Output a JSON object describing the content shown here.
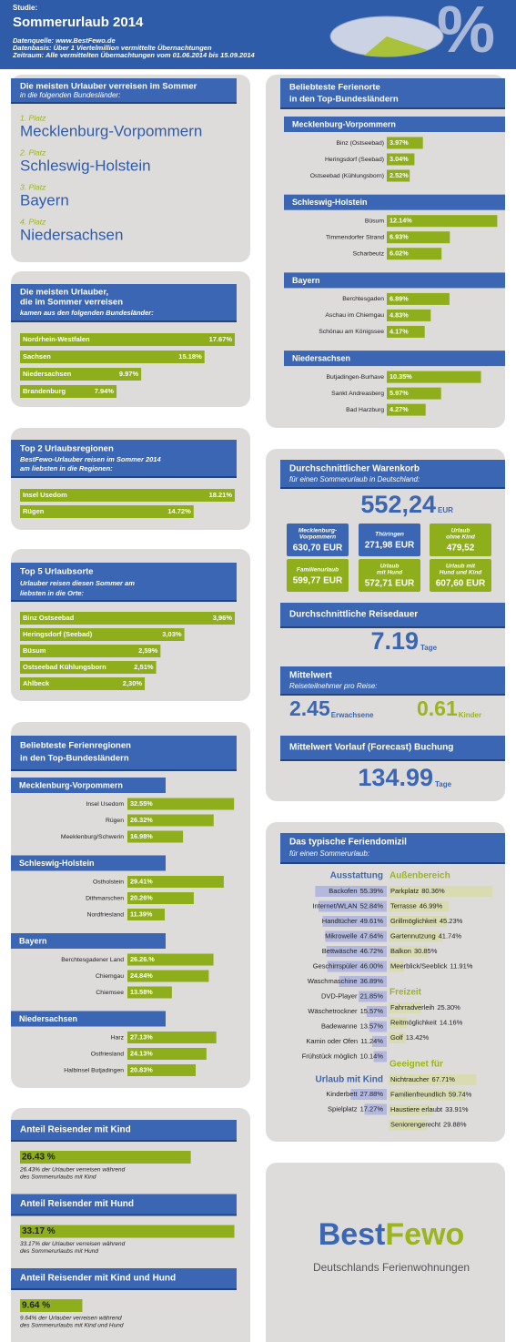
{
  "header": {
    "label": "Studie:",
    "title": "Sommerurlaub 2014",
    "source": "Datenquelle: www.BestFewo.de",
    "basis": "Datenbasis: Über 1 Viertelmillion vermittelte Übernachtungen",
    "period": "Zeitraum: Alle vermittelten Übernachtungen vom 01.06.2014 bis 15.09.2014",
    "icon": "%"
  },
  "destinations": {
    "title": "Die meisten Urlauber verreisen im Sommer",
    "subtitle": "in die folgenden Bundesländer:",
    "items": [
      {
        "rank": "1. Platz",
        "name": "Mecklenburg-Vorpommern"
      },
      {
        "rank": "2. Platz",
        "name": "Schleswig-Holstein"
      },
      {
        "rank": "3. Platz",
        "name": "Bayern"
      },
      {
        "rank": "4. Platz",
        "name": "Niedersachsen"
      }
    ]
  },
  "origin": {
    "title": [
      "Die meisten Urlauber,",
      "die im Sommer verreisen"
    ],
    "subtitle": "kamen aus den folgenden Bundesländer:",
    "labels": [
      "Nordrhein-Westfalen",
      "Sachsen",
      "Niedersachsen",
      "Brandenburg"
    ],
    "values": [
      17.67,
      15.18,
      9.97,
      7.94
    ],
    "value_labels": [
      "17.67%",
      "15.18%",
      "9.97%",
      "7.94%"
    ]
  },
  "top_regions": {
    "title": "Top 2 Urlaubsregionen",
    "subtitle": [
      "BestFewo-Urlauber reisen im Sommer 2014",
      "am liebsten in die Regionen:"
    ],
    "labels": [
      "Insel Usedom",
      "Rügen"
    ],
    "values": [
      18.21,
      14.72
    ],
    "value_labels": [
      "18.21%",
      "14.72%"
    ]
  },
  "top_places": {
    "title": "Top 5 Urlaubsorte",
    "subtitle": [
      "Urlauber reisen diesen Sommer am",
      "liebsten in die Orte:"
    ],
    "labels": [
      "Binz Ostseebad",
      "Heringsdorf (Seebad)",
      "Büsum",
      "Ostseebad Kühlungsborn",
      "Ahlbeck"
    ],
    "values": [
      3.96,
      3.03,
      2.59,
      2.51,
      2.3
    ],
    "value_labels": [
      "3,96%",
      "3,03%",
      "2,59%",
      "2,51%",
      "2,30%"
    ]
  },
  "regions_by_state": {
    "title": [
      "Beliebteste Ferienregionen",
      "in den Top-Bundesländern"
    ],
    "groups": [
      {
        "name": "Mecklenburg-Vorpommern",
        "labels": [
          "Insel Usedom",
          "Rügen",
          "Meeklenburg/Schwerin"
        ],
        "values": [
          32.55,
          26.32,
          16.98
        ],
        "value_labels": [
          "32.55%",
          "26.32%",
          "16.98%"
        ]
      },
      {
        "name": "Schleswig-Holstein",
        "labels": [
          "Ostholstein",
          "Dithmarschen",
          "Nordfriesland"
        ],
        "values": [
          29.41,
          20.26,
          11.39
        ],
        "value_labels": [
          "29.41%",
          "20.26%",
          "11.39%"
        ]
      },
      {
        "name": "Bayern",
        "labels": [
          "Berchtesgadener Land",
          "Chiemgau",
          "Chiemsee"
        ],
        "values": [
          26.26,
          24.84,
          13.58
        ],
        "value_labels": [
          "26.26.%",
          "24.84%",
          "13.58%"
        ]
      },
      {
        "name": "Niedersachsen",
        "labels": [
          "Harz",
          "Ostfriesland",
          "Halbinsel Butjadingen"
        ],
        "values": [
          27.13,
          24.13,
          20.83
        ],
        "value_labels": [
          "27.13%",
          "24.13%",
          "20.83%"
        ]
      }
    ]
  },
  "shares": [
    {
      "title": "Anteil Reisender mit Kind",
      "value": 26.43,
      "value_label": "26.43 %",
      "note": [
        "26.43% der Urlauber verreisen während",
        "des Sommerurlaubs mit Kind"
      ]
    },
    {
      "title": "Anteil Reisender mit Hund",
      "value": 33.17,
      "value_label": "33.17 %",
      "note": [
        "33.17% der Urlauber verreisen während",
        "des Sommerurlaubs mit Hund"
      ]
    },
    {
      "title": "Anteil Reisender mit Kind und Hund",
      "value": 9.64,
      "value_label": "9.64 %",
      "note": [
        "9.64% der Urlauber verreisen während",
        "des Sommerurlaubs mit Kind und Hund"
      ]
    }
  ],
  "places_by_state": {
    "title": [
      "Beliebteste Ferienorte",
      "in den Top-Bundesländern"
    ],
    "groups": [
      {
        "name": "Mecklenburg-Vorpommern",
        "labels": [
          "Binz (Ostseebad)",
          "Heringsdorf (Seebad)",
          "Ostseebad (Kühlungsborn)"
        ],
        "values": [
          3.97,
          3.04,
          2.52
        ],
        "value_labels": [
          "3.97%",
          "3.04%",
          "2.52%"
        ]
      },
      {
        "name": "Schleswig-Holstein",
        "labels": [
          "Büsum",
          "Timmendorfer Strand",
          "Scharbeutz"
        ],
        "values": [
          12.14,
          6.93,
          6.02
        ],
        "value_labels": [
          "12.14%",
          "6.93%",
          "6.02%"
        ]
      },
      {
        "name": "Bayern",
        "labels": [
          "Berchtesgaden",
          "Aschau im Chiemgau",
          "Schönau am Königssee"
        ],
        "values": [
          6.89,
          4.83,
          4.17
        ],
        "value_labels": [
          "6.89%",
          "4.83%",
          "4.17%"
        ]
      },
      {
        "name": "Niedersachsen",
        "labels": [
          "Butjadingen-Burhave",
          "Sankt Andreasberg",
          "Bad Harzburg"
        ],
        "values": [
          10.35,
          5.97,
          4.27
        ],
        "value_labels": [
          "10.35%",
          "5.97%",
          "4.27%"
        ]
      }
    ]
  },
  "basket": {
    "title": "Durchschnittlicher Warenkorb",
    "subtitle": "für einen Sommerurlaub in Deutschland:",
    "value": "552,24",
    "unit": "EUR",
    "boxes": [
      {
        "label": [
          "Mecklenburg-",
          "Vorpommern"
        ],
        "value": "630,70 EUR"
      },
      {
        "label": [
          "Thüringen"
        ],
        "value": "271,98 EUR"
      },
      {
        "label": [
          "Urlaub",
          "ohne Kind"
        ],
        "value": "479,52"
      },
      {
        "label": [
          "Familienurlaub"
        ],
        "value": "599,77 EUR"
      },
      {
        "label": [
          "Urlaub",
          "mit Hund"
        ],
        "value": "572,71 EUR"
      },
      {
        "label": [
          "Urlaub mit",
          "Hund und Kind"
        ],
        "value": "607,60 EUR"
      }
    ]
  },
  "duration": {
    "title": "Durchschnittliche Reisedauer",
    "value": "7.19",
    "unit": "Tage"
  },
  "participants": {
    "title": "Mittelwert",
    "subtitle": "Reiseteilnehmer pro Reise:",
    "adults": {
      "value": "2.45",
      "unit": "Erwachsene"
    },
    "kids": {
      "value": "0.61",
      "unit": "Kinder"
    }
  },
  "lead_time": {
    "title": "Mittelwert Vorlauf (Forecast) Buchung",
    "value": "134.99",
    "unit": "Tage"
  },
  "home": {
    "title": "Das typische Feriendomizil",
    "subtitle": "für einen Sommerurlaub:",
    "equipment": {
      "name": "Ausstattung",
      "labels": [
        "Backofen",
        "Internet/WLAN",
        "Handtücher",
        "Mikrowelle",
        "Bettwäsche",
        "Geschirrspüler",
        "Waschmaschine",
        "DVD-Player",
        "Wäschetrockner",
        "Badewanne",
        "Kamin oder Ofen",
        "Frühstück möglich"
      ],
      "values": [
        55.39,
        52.84,
        49.61,
        47.64,
        46.72,
        46.0,
        36.89,
        21.85,
        15.57,
        13.57,
        11.24,
        10.14
      ],
      "value_labels": [
        "55.39%",
        "52.84%",
        "49.61%",
        "47.64%",
        "46.72%",
        "46.00%",
        "36.89%",
        "21.85%",
        "15.57%",
        "13.57%",
        "11.24%",
        "10.14%"
      ]
    },
    "outdoor": {
      "name": "Außenbereich",
      "labels": [
        "Parkplatz",
        "Terrasse",
        "Grillmöglichkeit",
        "Gartennutzung",
        "Balkon",
        "Meerblick/Seeblick"
      ],
      "values": [
        80.36,
        46.99,
        45.23,
        41.74,
        30.85,
        11.91
      ],
      "value_labels": [
        "80.36%",
        "46.99%",
        "45.23%",
        "41.74%",
        "30.85%",
        "11.91%"
      ]
    },
    "leisure": {
      "name": "Freizeit",
      "labels": [
        "Fahrradverleih",
        "Reitmöglichkeit",
        "Golf"
      ],
      "values": [
        25.3,
        14.16,
        13.42
      ],
      "value_labels": [
        "25.30%",
        "14.16%",
        "13.42%"
      ]
    },
    "kids": {
      "name": "Urlaub mit Kind",
      "labels": [
        "Kinderbett",
        "Spielplatz"
      ],
      "values": [
        27.88,
        17.27
      ],
      "value_labels": [
        "27.88%",
        "17.27%"
      ]
    },
    "suitable": {
      "name": "Geeignet für",
      "labels": [
        "Nichtraucher",
        "Familienfreundlich",
        "Haustiere erlaubt",
        "Seniorengerecht"
      ],
      "values": [
        67.71,
        59.74,
        33.91,
        29.88
      ],
      "value_labels": [
        "67.71%",
        "59.74%",
        "33.91%",
        "29.88%"
      ]
    }
  },
  "logo": {
    "brand": [
      "Best",
      "Fewo"
    ],
    "tagline": "Deutschlands Ferienwohnungen"
  }
}
